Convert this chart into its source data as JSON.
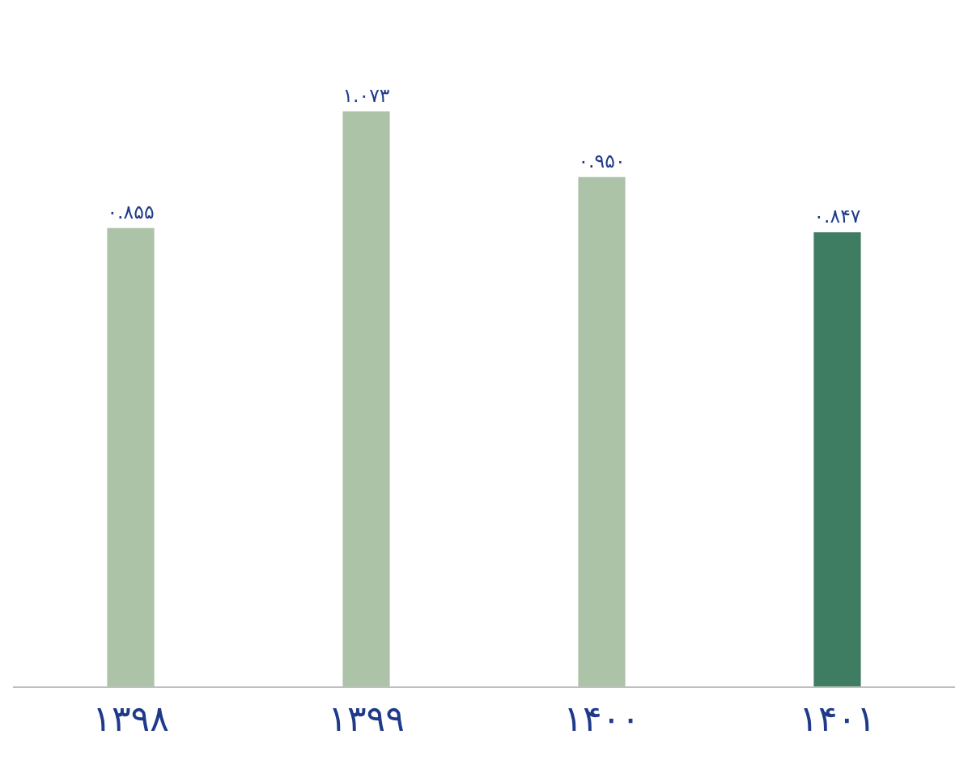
{
  "chart_data": {
    "type": "bar",
    "categories": [
      "۱۳۹۸",
      "۱۳۹۹",
      "۱۴۰۰",
      "۱۴۰۱"
    ],
    "values": [
      0.855,
      1.073,
      0.95,
      0.847
    ],
    "value_labels": [
      "۰.۸۵۵",
      "۱.۰۷۳",
      "۰.۹۵۰",
      "۰.۸۴۷"
    ],
    "colors": [
      "#adc3a8",
      "#adc3a8",
      "#adc3a8",
      "#3f7d62"
    ]
  }
}
